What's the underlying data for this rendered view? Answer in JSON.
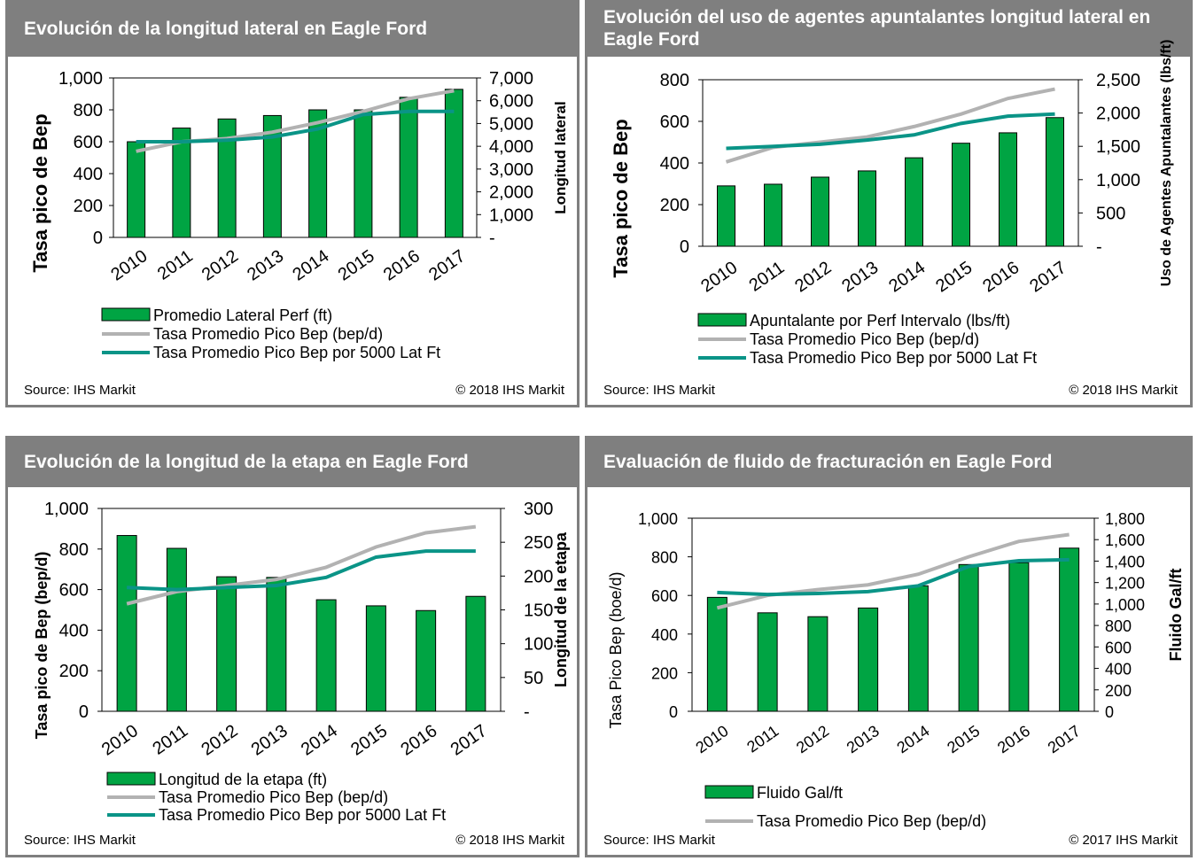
{
  "colors": {
    "bar": "#00a443",
    "bar_edge": "#000000",
    "gray_line": "#b2b2b2",
    "teal_line": "#0a9487",
    "header_bg": "#7f7f7f"
  },
  "chart_data": [
    {
      "type": "bar+line",
      "title": "Evolución de la longitud lateral en Eagle Ford",
      "categories": [
        "2010",
        "2011",
        "2012",
        "2013",
        "2014",
        "2015",
        "2016",
        "2017"
      ],
      "ylabel": "Tasa pico de Bep",
      "y2label": "Longitud lateral",
      "ylim": [
        0,
        1000
      ],
      "y2lim": [
        0,
        7000
      ],
      "yticks": [
        "0",
        "200",
        "400",
        "600",
        "800",
        "1,000"
      ],
      "y2ticks": [
        "-",
        "1,000",
        "2,000",
        "3,000",
        "4,000",
        "5,000",
        "6,000",
        "7,000"
      ],
      "series": [
        {
          "name": "Promedio Lateral Perf (ft)",
          "kind": "bar",
          "axis": "y2",
          "values": [
            4200,
            4800,
            5200,
            5350,
            5600,
            5600,
            6150,
            6500
          ]
        },
        {
          "name": "Tasa Promedio Pico Bep (bep/d)",
          "kind": "line",
          "axis": "y",
          "color": "gray",
          "values": [
            540,
            600,
            620,
            660,
            720,
            790,
            870,
            920
          ]
        },
        {
          "name": "Tasa Promedio Pico Bep por 5000 Lat Ft",
          "kind": "line",
          "axis": "y",
          "color": "teal",
          "values": [
            600,
            600,
            610,
            630,
            680,
            770,
            790,
            790
          ]
        }
      ],
      "source": "Source: IHS Markit",
      "copyright": "© 2018 IHS Markit"
    },
    {
      "type": "bar+line",
      "title": "Evolución del uso de agentes apuntalantes longitud lateral en Eagle Ford",
      "categories": [
        "2010",
        "2011",
        "2012",
        "2013",
        "2014",
        "2015",
        "2016",
        "2017"
      ],
      "ylabel": "Tasa pico de Bep",
      "y2label": "Uso de Agentes Apuntalantes (lbs/ft)",
      "ylim": [
        0,
        800
      ],
      "y2lim": [
        0,
        2500
      ],
      "yticks": [
        "0",
        "200",
        "400",
        "600",
        "800"
      ],
      "y2ticks": [
        "-",
        "500",
        "1,000",
        "1,500",
        "2,000",
        "2,500"
      ],
      "series": [
        {
          "name": "Apuntalante por Perf Intervalo (lbs/ft)",
          "kind": "bar",
          "axis": "y",
          "values": [
            290,
            298,
            332,
            362,
            425,
            495,
            545,
            618
          ]
        },
        {
          "name": "Tasa Promedio Pico Bep (bep/d)",
          "kind": "line",
          "axis": "y",
          "color": "gray",
          "values": [
            405,
            475,
            500,
            525,
            575,
            635,
            710,
            755
          ]
        },
        {
          "name": "Tasa Promedio Pico Bep por 5000 Lat Ft",
          "kind": "line",
          "axis": "y",
          "color": "teal",
          "values": [
            470,
            480,
            490,
            510,
            535,
            590,
            625,
            635
          ]
        }
      ],
      "source": "Source: IHS Markit",
      "copyright": "© 2018 IHS Markit"
    },
    {
      "type": "bar+line",
      "title": "Evolución de la longitud de la etapa en Eagle Ford",
      "categories": [
        "2010",
        "2011",
        "2012",
        "2013",
        "2014",
        "2015",
        "2016",
        "2017"
      ],
      "ylabel": "Tasa pico de Bep (bep/d)",
      "y2label": "Longitud de la etapa",
      "ylim": [
        0,
        1000
      ],
      "y2lim": [
        0,
        300
      ],
      "yticks": [
        "0",
        "200",
        "400",
        "600",
        "800",
        "1,000"
      ],
      "y2ticks": [
        "-",
        "50",
        "100",
        "150",
        "200",
        "250",
        "300"
      ],
      "series": [
        {
          "name": "Longitud de la etapa (ft)",
          "kind": "bar",
          "axis": "y2",
          "values": [
            260,
            241,
            199,
            198,
            165,
            156,
            149,
            170
          ]
        },
        {
          "name": "Tasa Promedio Pico Bep (bep/d)",
          "kind": "line",
          "axis": "y",
          "color": "gray",
          "values": [
            530,
            590,
            620,
            650,
            710,
            810,
            880,
            910
          ]
        },
        {
          "name": "Tasa Promedio Pico Bep por 5000 Lat Ft",
          "kind": "line",
          "axis": "y",
          "color": "teal",
          "values": [
            610,
            600,
            610,
            620,
            660,
            760,
            790,
            790
          ]
        }
      ],
      "source": "Source: IHS Markit",
      "copyright": "© 2018 IHS Markit"
    },
    {
      "type": "bar+line",
      "title": "Evaluación de fluido de fracturación en Eagle Ford",
      "categories": [
        "2010",
        "2011",
        "2012",
        "2013",
        "2014",
        "2015",
        "2016",
        "2017"
      ],
      "ylabel": "Tasa Pico Bep (boe/d)",
      "y2label": "Fluido Gal/ft",
      "ylim": [
        0,
        1000
      ],
      "y2lim": [
        0,
        1800
      ],
      "yticks": [
        "0",
        "200",
        "400",
        "600",
        "800",
        "1,000"
      ],
      "y2ticks": [
        "0",
        "200",
        "400",
        "600",
        "800",
        "1,000",
        "1,200",
        "1,400",
        "1,600",
        "1,800"
      ],
      "series": [
        {
          "name": "Fluido Gal/ft",
          "kind": "bar",
          "axis": "y",
          "values": [
            590,
            510,
            490,
            535,
            650,
            760,
            770,
            845
          ]
        },
        {
          "name": "Tasa Promedio Pico Bep (bep/d)",
          "kind": "line",
          "axis": "y",
          "color": "gray",
          "values": [
            535,
            600,
            630,
            655,
            710,
            800,
            880,
            915
          ]
        },
        {
          "name": "",
          "kind": "line",
          "axis": "y",
          "color": "teal",
          "values": [
            615,
            605,
            610,
            620,
            650,
            750,
            780,
            785
          ]
        }
      ],
      "source": "Source: IHS Markit",
      "copyright": "© 2017 IHS Markit"
    }
  ]
}
